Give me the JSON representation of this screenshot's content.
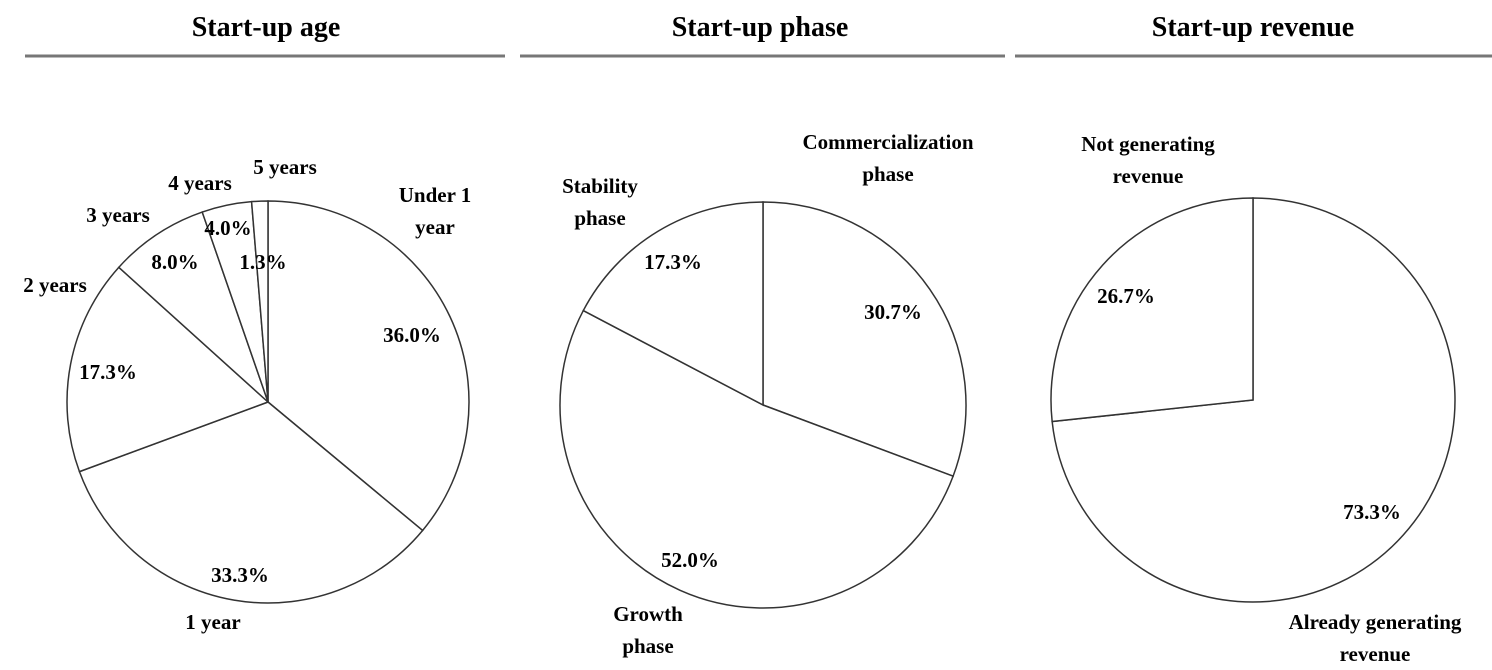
{
  "chart_data": [
    {
      "type": "pie",
      "title": "Start-up age",
      "categories": [
        "Under 1 year",
        "1 year",
        "2 years",
        "3 years",
        "4 years",
        "5 years"
      ],
      "values": [
        36.0,
        33.3,
        17.3,
        8.0,
        4.0,
        1.3
      ],
      "value_labels": [
        "36.0%",
        "33.3%",
        "17.3%",
        "8.0%",
        "4.0%",
        "1.3%"
      ]
    },
    {
      "type": "pie",
      "title": "Start-up phase",
      "categories": [
        "Commercialization phase",
        "Growth phase",
        "Stability phase"
      ],
      "values": [
        30.7,
        52.0,
        17.3
      ],
      "value_labels": [
        "30.7%",
        "52.0%",
        "17.3%"
      ]
    },
    {
      "type": "pie",
      "title": "Start-up revenue",
      "categories": [
        "Already generating revenue",
        "Not generating revenue"
      ],
      "values": [
        73.3,
        26.7
      ],
      "value_labels": [
        "73.3%",
        "26.7%"
      ]
    }
  ]
}
